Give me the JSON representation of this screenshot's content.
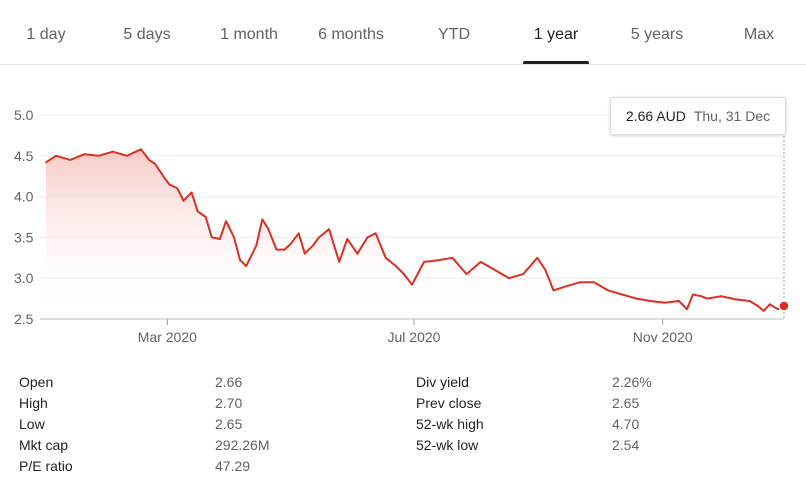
{
  "tabs": [
    {
      "label": "1 day",
      "active": false
    },
    {
      "label": "5 days",
      "active": false
    },
    {
      "label": "1 month",
      "active": false
    },
    {
      "label": "6 months",
      "active": false
    },
    {
      "label": "YTD",
      "active": false
    },
    {
      "label": "1 year",
      "active": true
    },
    {
      "label": "5 years",
      "active": false
    },
    {
      "label": "Max",
      "active": false
    }
  ],
  "tooltip": {
    "price": "2.66 AUD",
    "date": "Thu, 31 Dec"
  },
  "colors": {
    "line": "#d93025",
    "fill_top": "#f6c3bf",
    "grid": "#ececec",
    "axis": "#5f6368"
  },
  "chart_data": {
    "type": "area",
    "title": "",
    "xlabel": "",
    "ylabel": "",
    "ylim": [
      2.5,
      5.0
    ],
    "yticks": [
      "5.0",
      "4.5",
      "4.0",
      "3.5",
      "3.0",
      "2.5"
    ],
    "xticks": [
      "Mar 2020",
      "Jul 2020",
      "Nov 2020"
    ],
    "grid": true,
    "series": [
      {
        "x": [
          "2020-01-01",
          "2020-01-06",
          "2020-01-13",
          "2020-01-20",
          "2020-01-27",
          "2020-02-03",
          "2020-02-10",
          "2020-02-17",
          "2020-02-21",
          "2020-02-24",
          "2020-02-28",
          "2020-03-02",
          "2020-03-06",
          "2020-03-09",
          "2020-03-13",
          "2020-03-16",
          "2020-03-20",
          "2020-03-23",
          "2020-03-27",
          "2020-03-30",
          "2020-04-03",
          "2020-04-06",
          "2020-04-09",
          "2020-04-14",
          "2020-04-17",
          "2020-04-20",
          "2020-04-24",
          "2020-04-28",
          "2020-05-01",
          "2020-05-05",
          "2020-05-08",
          "2020-05-12",
          "2020-05-15",
          "2020-05-20",
          "2020-05-25",
          "2020-05-29",
          "2020-06-03",
          "2020-06-08",
          "2020-06-12",
          "2020-06-17",
          "2020-06-22",
          "2020-06-26",
          "2020-06-30",
          "2020-07-06",
          "2020-07-13",
          "2020-07-20",
          "2020-07-27",
          "2020-08-03",
          "2020-08-10",
          "2020-08-17",
          "2020-08-24",
          "2020-08-31",
          "2020-09-04",
          "2020-09-08",
          "2020-09-14",
          "2020-09-21",
          "2020-09-28",
          "2020-10-05",
          "2020-10-12",
          "2020-10-19",
          "2020-10-26",
          "2020-11-02",
          "2020-11-09",
          "2020-11-13",
          "2020-11-16",
          "2020-11-20",
          "2020-11-23",
          "2020-11-30",
          "2020-12-07",
          "2020-12-14",
          "2020-12-18",
          "2020-12-21",
          "2020-12-24",
          "2020-12-28",
          "2020-12-31"
        ],
        "y": [
          4.42,
          4.5,
          4.45,
          4.52,
          4.5,
          4.55,
          4.5,
          4.58,
          4.45,
          4.4,
          4.25,
          4.15,
          4.1,
          3.95,
          4.05,
          3.82,
          3.75,
          3.5,
          3.48,
          3.7,
          3.5,
          3.22,
          3.15,
          3.4,
          3.72,
          3.6,
          3.35,
          3.35,
          3.42,
          3.55,
          3.3,
          3.4,
          3.5,
          3.6,
          3.2,
          3.48,
          3.3,
          3.5,
          3.55,
          3.25,
          3.15,
          3.05,
          2.92,
          3.2,
          3.22,
          3.25,
          3.05,
          3.2,
          3.1,
          3.0,
          3.05,
          3.25,
          3.1,
          2.85,
          2.9,
          2.95,
          2.95,
          2.85,
          2.8,
          2.75,
          2.72,
          2.7,
          2.72,
          2.62,
          2.8,
          2.78,
          2.75,
          2.78,
          2.74,
          2.72,
          2.66,
          2.6,
          2.68,
          2.62,
          2.66
        ]
      }
    ]
  },
  "stats_left": [
    {
      "label": "Open",
      "value": "2.66"
    },
    {
      "label": "High",
      "value": "2.70"
    },
    {
      "label": "Low",
      "value": "2.65"
    },
    {
      "label": "Mkt cap",
      "value": "292.26M"
    },
    {
      "label": "P/E ratio",
      "value": "47.29"
    }
  ],
  "stats_right": [
    {
      "label": "Div yield",
      "value": "2.26%"
    },
    {
      "label": "Prev close",
      "value": "2.65"
    },
    {
      "label": "52-wk high",
      "value": "4.70"
    },
    {
      "label": "52-wk low",
      "value": "2.54"
    }
  ]
}
